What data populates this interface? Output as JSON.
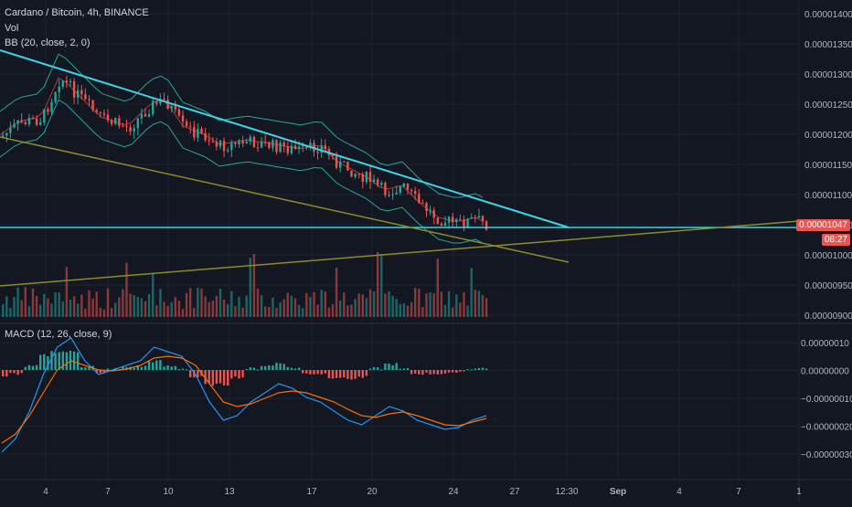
{
  "header": {
    "title": "Cardano / Bitcoin, 4h, BINANCE",
    "vol_label": "Vol",
    "bb_label": "BB (20, close, 2, 0)",
    "macd_label": "MACD (12, 26, close, 9)"
  },
  "price_axis": {
    "ticks": [
      "0.00001400",
      "0.00001350",
      "0.00001300",
      "0.00001250",
      "0.00001200",
      "0.00001150",
      "0.00001100",
      "0.00001050",
      "0.00001000",
      "0.00000950",
      "0.00000900"
    ],
    "current_price": "0.00001047",
    "countdown": "08:27"
  },
  "macd_axis": {
    "ticks": [
      "0.00000010",
      "0.00000000",
      "−0.00000010",
      "−0.00000020",
      "−0.00000030"
    ]
  },
  "time_axis": {
    "ticks": [
      "4",
      "7",
      "10",
      "13",
      "17",
      "20",
      "24",
      "27",
      "12:30",
      "Sep",
      "4",
      "7",
      "1"
    ]
  },
  "colors": {
    "background": "#131722",
    "up": "#26a69a",
    "down": "#ef5350",
    "trend_cyan": "#3ad6e6",
    "trend_olive": "#8e8a2b",
    "bb_band": "#26a69a",
    "bb_basis": "#b33a3a",
    "macd_line": "#2196f3",
    "signal_line": "#ff6d00"
  },
  "chart_data": [
    {
      "type": "candlestick",
      "title": "Cardano / Bitcoin, 4h, BINANCE",
      "unit": "BTC",
      "ylim": [
        8.9e-06,
        1.41e-05
      ],
      "x": [
        "2 Aug",
        "4 Aug",
        "7 Aug",
        "10 Aug",
        "13 Aug",
        "17 Aug",
        "20 Aug",
        "24 Aug",
        "25 Aug"
      ],
      "close": [
        1.21e-05,
        1.26e-05,
        1.24e-05,
        1.25e-05,
        1.18e-05,
        1.19e-05,
        1.13e-05,
        1.06e-05,
        1.047e-05
      ],
      "last_price": 1.047e-05,
      "indicators": [
        "Vol",
        "BB (20, close, 2, 0)"
      ],
      "trendlines": [
        {
          "from": [
            "2 Aug",
            1.34e-05
          ],
          "to": [
            "29 Aug",
            1.047e-05
          ]
        },
        {
          "from": [
            "2 Aug",
            1.19e-05
          ],
          "to": [
            "29 Aug",
            9.9e-06
          ]
        },
        {
          "from": [
            "2 Aug",
            9.5e-06
          ],
          "to": [
            "7 Sep",
            1.055e-05
          ]
        },
        {
          "horizontal": 1.047e-05
        }
      ]
    },
    {
      "type": "line",
      "title": "MACD (12, 26, close, 9)",
      "ylim": [
        -3e-07,
        1.3e-07
      ],
      "x": [
        "2 Aug",
        "4 Aug",
        "7 Aug",
        "10 Aug",
        "13 Aug",
        "17 Aug",
        "20 Aug",
        "24 Aug",
        "25 Aug"
      ],
      "series": [
        {
          "values": [
            -2.8e-07,
            5e-08,
            -3e-08,
            7e-08,
            -1.6e-07,
            -8e-08,
            -1.8e-07,
            -2e-07,
            -1.3e-07
          ]
        },
        {
          "values": [
            -2.4e-07,
            1e-08,
            -2e-08,
            2e-08,
            -1e-07,
            -1.1e-07,
            -1.4e-07,
            -2e-07,
            -1.5e-07
          ]
        }
      ]
    }
  ]
}
